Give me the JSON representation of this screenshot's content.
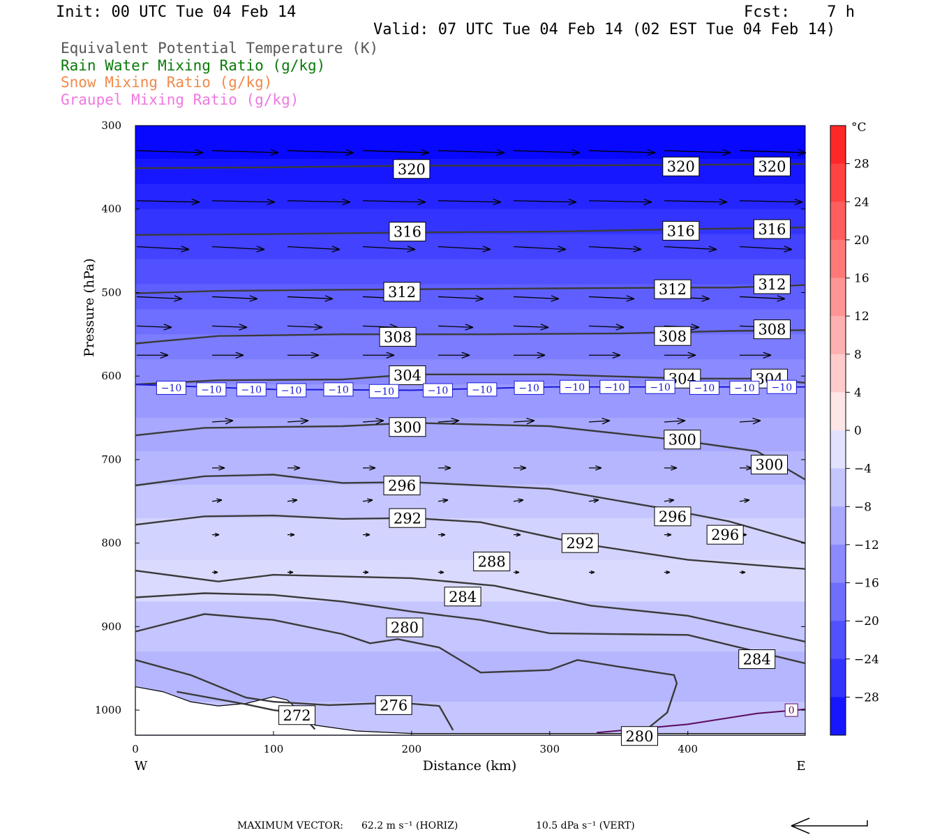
{
  "header": {
    "init": "Init: 00 UTC Tue 04 Feb 14",
    "fcst": "Fcst:    7 h",
    "valid": "Valid: 07 UTC Tue 04 Feb 14 (02 EST Tue 04 Feb 14)"
  },
  "legend_fields": [
    {
      "label": "Equivalent Potential Temperature (K)",
      "color": "#555555"
    },
    {
      "label": "Rain Water Mixing Ratio (g/kg)",
      "color": "#0a7a0a"
    },
    {
      "label": "Snow Mixing Ratio (g/kg)",
      "color": "#f08a4a"
    },
    {
      "label": "Graupel Mixing Ratio (g/kg)",
      "color": "#f078e0"
    }
  ],
  "chart_data": {
    "type": "cross-section",
    "xlabel": "Distance (km)",
    "ylabel": "Pressure (hPa)",
    "xlim": [
      0,
      485
    ],
    "ylim": [
      1030,
      300
    ],
    "x_ticks": [
      0,
      100,
      200,
      300,
      400
    ],
    "y_ticks": [
      300,
      400,
      500,
      600,
      700,
      800,
      900,
      1000
    ],
    "x_end_labels": {
      "left": "W",
      "right": "E"
    },
    "colorbar": {
      "unit": "°C",
      "ticks": [
        28,
        24,
        20,
        16,
        12,
        8,
        4,
        0,
        -4,
        -8,
        -12,
        -16,
        -20,
        -24,
        -28
      ],
      "range": [
        -32,
        32
      ]
    },
    "theta_e_contours": [
      {
        "value": 320,
        "points": [
          [
            0,
            351
          ],
          [
            100,
            350
          ],
          [
            200,
            348
          ],
          [
            300,
            348
          ],
          [
            400,
            347
          ],
          [
            485,
            346
          ]
        ],
        "labels": [
          [
            200,
            352
          ],
          [
            395,
            349
          ],
          [
            461,
            349
          ]
        ]
      },
      {
        "value": 316,
        "points": [
          [
            0,
            431
          ],
          [
            100,
            430
          ],
          [
            200,
            428
          ],
          [
            300,
            427
          ],
          [
            400,
            424
          ],
          [
            485,
            422
          ]
        ],
        "labels": [
          [
            197,
            427
          ],
          [
            395,
            426
          ],
          [
            461,
            424
          ]
        ]
      },
      {
        "value": 312,
        "points": [
          [
            0,
            501
          ],
          [
            60,
            498
          ],
          [
            120,
            497
          ],
          [
            200,
            496
          ],
          [
            300,
            495
          ],
          [
            400,
            494
          ],
          [
            430,
            494
          ],
          [
            485,
            491
          ]
        ],
        "labels": [
          [
            193,
            499
          ],
          [
            389,
            496
          ],
          [
            461,
            490
          ]
        ]
      },
      {
        "value": 308,
        "points": [
          [
            0,
            561
          ],
          [
            60,
            552
          ],
          [
            150,
            550
          ],
          [
            250,
            550
          ],
          [
            350,
            549
          ],
          [
            430,
            546
          ],
          [
            485,
            545
          ]
        ],
        "labels": [
          [
            190,
            553
          ],
          [
            389,
            552
          ],
          [
            461,
            544
          ]
        ]
      },
      {
        "value": 304,
        "points": [
          [
            0,
            610
          ],
          [
            60,
            605
          ],
          [
            150,
            604
          ],
          [
            200,
            598
          ],
          [
            300,
            598
          ],
          [
            400,
            603
          ],
          [
            450,
            603
          ],
          [
            485,
            608
          ]
        ],
        "labels": [
          [
            197,
            599
          ],
          [
            396,
            603
          ],
          [
            459,
            603
          ]
        ]
      },
      {
        "value": 300,
        "points": [
          [
            0,
            671
          ],
          [
            50,
            662
          ],
          [
            150,
            660
          ],
          [
            200,
            656
          ],
          [
            300,
            660
          ],
          [
            390,
            676
          ],
          [
            450,
            690
          ],
          [
            485,
            724
          ]
        ],
        "labels": [
          [
            197,
            661
          ],
          [
            396,
            676
          ],
          [
            459,
            706
          ]
        ]
      },
      {
        "value": 296,
        "points": [
          [
            0,
            731
          ],
          [
            50,
            720
          ],
          [
            100,
            718
          ],
          [
            150,
            728
          ],
          [
            200,
            727
          ],
          [
            300,
            735
          ],
          [
            380,
            758
          ],
          [
            430,
            774
          ],
          [
            485,
            800
          ]
        ],
        "labels": [
          [
            193,
            731
          ],
          [
            389,
            768
          ],
          [
            427,
            790
          ]
        ]
      },
      {
        "value": 292,
        "points": [
          [
            0,
            778
          ],
          [
            50,
            768
          ],
          [
            100,
            767
          ],
          [
            150,
            771
          ],
          [
            200,
            770
          ],
          [
            250,
            775
          ],
          [
            320,
            800
          ],
          [
            400,
            820
          ],
          [
            485,
            831
          ]
        ],
        "labels": [
          [
            197,
            770
          ],
          [
            322,
            800
          ]
        ]
      },
      {
        "value": 288,
        "points": [
          [
            0,
            833
          ],
          [
            60,
            846
          ],
          [
            100,
            838
          ],
          [
            200,
            842
          ],
          [
            260,
            851
          ],
          [
            330,
            875
          ],
          [
            400,
            887
          ],
          [
            485,
            918
          ]
        ],
        "labels": [
          [
            258,
            822
          ]
        ]
      },
      {
        "value": 284,
        "points": [
          [
            0,
            865
          ],
          [
            50,
            860
          ],
          [
            100,
            862
          ],
          [
            150,
            870
          ],
          [
            200,
            882
          ],
          [
            250,
            892
          ],
          [
            300,
            908
          ],
          [
            400,
            910
          ],
          [
            485,
            944
          ]
        ],
        "labels": [
          [
            237,
            864
          ],
          [
            450,
            939
          ]
        ]
      },
      {
        "value": 280,
        "points": [
          [
            0,
            906
          ],
          [
            50,
            885
          ],
          [
            100,
            892
          ],
          [
            150,
            909
          ],
          [
            170,
            920
          ],
          [
            190,
            915
          ],
          [
            220,
            925
          ],
          [
            250,
            955
          ],
          [
            300,
            952
          ],
          [
            320,
            940
          ],
          [
            350,
            948
          ],
          [
            390,
            958
          ],
          [
            392,
            968
          ],
          [
            385,
            1003
          ],
          [
            365,
            1030
          ]
        ],
        "labels": [
          [
            195,
            901
          ],
          [
            365,
            1031
          ]
        ]
      },
      {
        "value": 276,
        "points": [
          [
            0,
            940
          ],
          [
            40,
            958
          ],
          [
            80,
            985
          ],
          [
            100,
            990
          ],
          [
            140,
            994
          ],
          [
            190,
            991
          ],
          [
            220,
            995
          ],
          [
            230,
            1024
          ]
        ],
        "labels": [
          [
            187,
            994
          ]
        ]
      },
      {
        "value": 272,
        "points": [
          [
            30,
            978
          ],
          [
            80,
            993
          ],
          [
            100,
            1000
          ],
          [
            120,
            1004
          ],
          [
            130,
            1023
          ]
        ],
        "labels": [
          [
            117,
            1006
          ]
        ]
      }
    ],
    "isotherm_minus10": {
      "label": "−10",
      "points": [
        [
          0,
          610
        ],
        [
          100,
          616
        ],
        [
          200,
          617
        ],
        [
          300,
          613
        ],
        [
          400,
          613
        ],
        [
          485,
          613
        ]
      ],
      "labels": [
        [
          26,
          614
        ],
        [
          55,
          616
        ],
        [
          84,
          616
        ],
        [
          113,
          617
        ],
        [
          147,
          616
        ],
        [
          180,
          618
        ],
        [
          219,
          617
        ],
        [
          251,
          616
        ],
        [
          285,
          614
        ],
        [
          318,
          613
        ],
        [
          347,
          613
        ],
        [
          380,
          613
        ],
        [
          412,
          614
        ],
        [
          441,
          614
        ],
        [
          468,
          613
        ]
      ]
    },
    "zero_contour": {
      "label": "0",
      "points": [
        [
          334,
          1027
        ],
        [
          400,
          1017
        ],
        [
          450,
          1004
        ],
        [
          485,
          999
        ]
      ],
      "labels": [
        [
          475,
          1000
        ]
      ]
    },
    "wind_vectors": {
      "max_horizontal": "62.2 m s⁻¹ (HORIZ)",
      "max_vertical": "10.5 dPa s⁻¹ (VERT)"
    }
  },
  "footer": {
    "max_vector_label": "MAXIMUM VECTOR:",
    "horiz": "62.2 m s⁻¹ (HORIZ)",
    "vert": "10.5 dPa s⁻¹ (VERT)"
  }
}
